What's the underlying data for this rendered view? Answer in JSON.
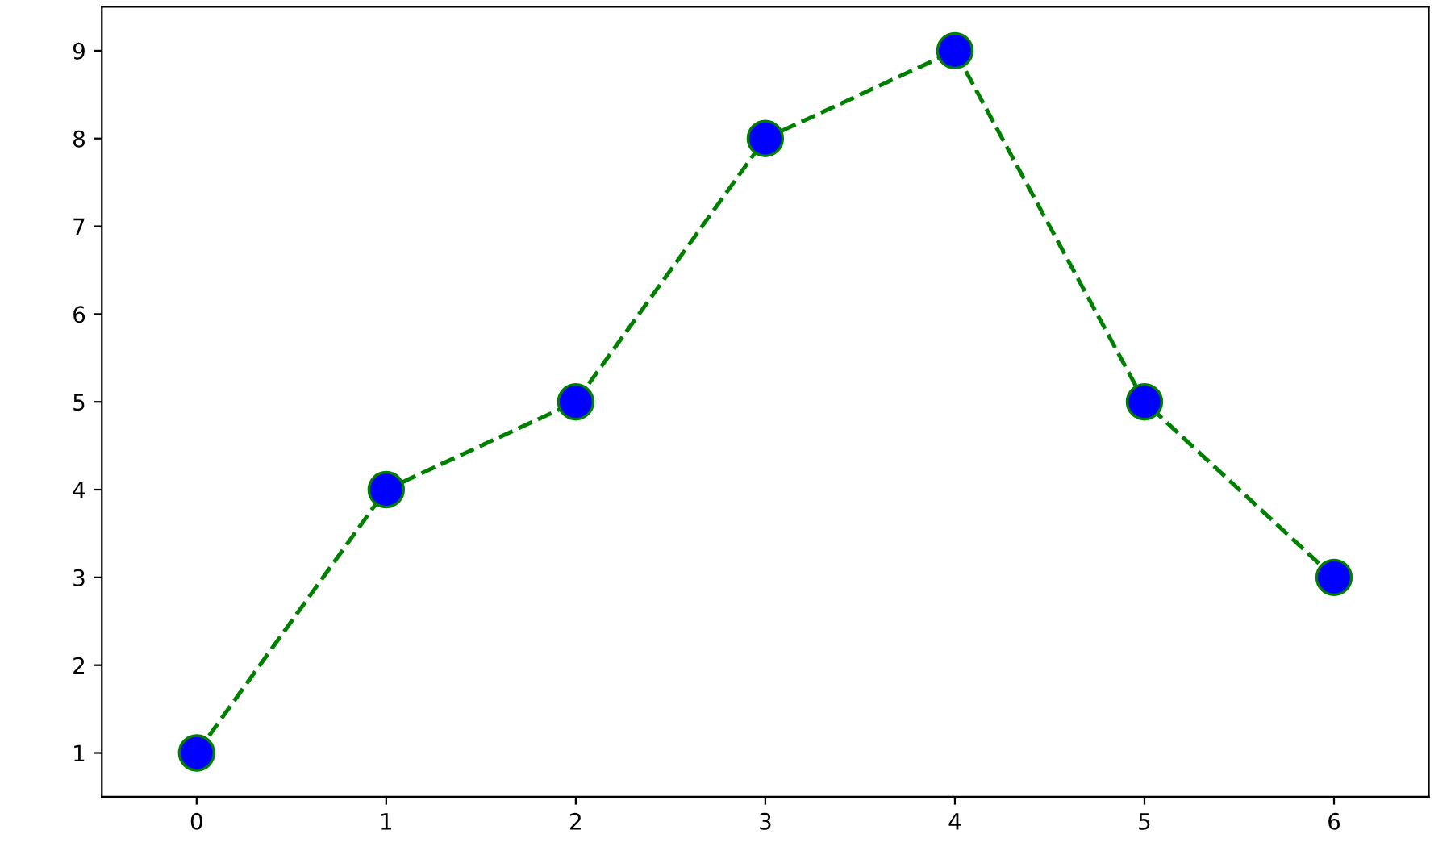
{
  "chart_data": {
    "type": "line",
    "x": [
      0,
      1,
      2,
      3,
      4,
      5,
      6
    ],
    "series": [
      {
        "color": "#008000",
        "colors": [
          "#0000ff",
          "#0000ff",
          "#0000ff",
          "#0000ff",
          "#0000ff",
          "#0000ff",
          "#0000ff"
        ],
        "values": [
          1,
          4,
          5,
          8,
          9,
          5,
          3
        ]
      }
    ],
    "xlim": [
      -0.5,
      6.5
    ],
    "ylim": [
      0.5,
      9.5
    ],
    "xticks": [
      0,
      1,
      2,
      3,
      4,
      5,
      6
    ],
    "yticks": [
      1,
      2,
      3,
      4,
      5,
      6,
      7,
      8,
      9
    ],
    "marker": "circle",
    "line_style": "dashed",
    "grid": false,
    "legend": false
  }
}
